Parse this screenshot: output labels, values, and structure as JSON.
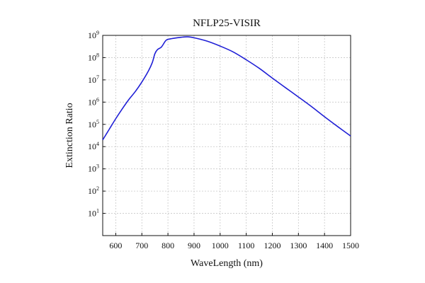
{
  "chart_data": {
    "type": "line",
    "title": "NFLP25-VISIR",
    "xlabel": "WaveLength (nm)",
    "ylabel": "Extinction Ratio",
    "xlim": [
      550,
      1500
    ],
    "ylim": [
      1,
      1000000000
    ],
    "yscale": "log",
    "grid": true,
    "x_ticks": [
      "600",
      "700",
      "800",
      "900",
      "1000",
      "1100",
      "1200",
      "1300",
      "1400",
      "1500"
    ],
    "y_ticks": [
      {
        "base": "10",
        "exp": "1"
      },
      {
        "base": "10",
        "exp": "2"
      },
      {
        "base": "10",
        "exp": "3"
      },
      {
        "base": "10",
        "exp": "4"
      },
      {
        "base": "10",
        "exp": "5"
      },
      {
        "base": "10",
        "exp": "6"
      },
      {
        "base": "10",
        "exp": "7"
      },
      {
        "base": "10",
        "exp": "8"
      },
      {
        "base": "10",
        "exp": "9"
      }
    ],
    "series": [
      {
        "color": "#1f1fd6",
        "x": [
          550,
          575,
          600,
          625,
          650,
          675,
          700,
          725,
          740,
          750,
          760,
          775,
          790,
          800,
          825,
          850,
          875,
          900,
          950,
          1000,
          1050,
          1100,
          1150,
          1200,
          1250,
          1300,
          1350,
          1400,
          1450,
          1500
        ],
        "y": [
          20000,
          60000,
          180000,
          500000,
          1300000,
          3000000,
          8000000,
          25000000,
          60000000,
          150000000,
          230000000,
          300000000,
          550000000,
          660000000,
          750000000,
          820000000,
          860000000,
          780000000,
          550000000,
          330000000,
          180000000,
          80000000,
          33000000,
          12000000,
          4500000,
          1700000,
          630000,
          220000,
          80000,
          30000
        ]
      }
    ]
  }
}
